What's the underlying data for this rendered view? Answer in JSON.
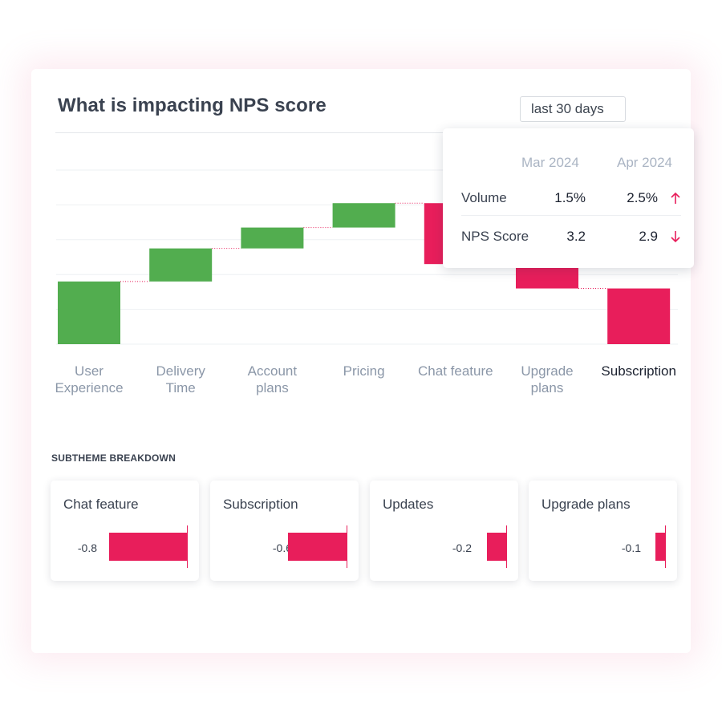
{
  "header": {
    "title": "What is impacting NPS score",
    "range_label": "last 30 days"
  },
  "chart_data": {
    "type": "waterfall",
    "categories": [
      "User Experience",
      "Delivery Time",
      "Account plans",
      "Pricing",
      "Chat feature",
      "Upgrade plans",
      "Subscription"
    ],
    "start": [
      0.0,
      1.8,
      2.75,
      3.35,
      4.05,
      2.3,
      1.6
    ],
    "end": [
      1.8,
      2.75,
      3.35,
      4.05,
      2.3,
      1.6,
      0.0
    ],
    "ylim": [
      0,
      5
    ],
    "grid": true,
    "active_category": "Subscription",
    "colors": {
      "positive": "#52ad4f",
      "negative": "#e81e5b",
      "grid": "#eef0f3",
      "connector": "#e81e5b"
    }
  },
  "tooltip": {
    "col1": "Mar 2024",
    "col2": "Apr 2024",
    "rows": [
      {
        "label": "Volume",
        "v1": "1.5%",
        "v2": "2.5%",
        "trend": "up"
      },
      {
        "label": "NPS Score",
        "v1": "3.2",
        "v2": "2.9",
        "trend": "down"
      }
    ]
  },
  "breakdown": {
    "title": "SUBTHEME BREAKDOWN",
    "items": [
      {
        "name": "Chat feature",
        "value": -0.8,
        "label": "-0.8"
      },
      {
        "name": "Subscription",
        "value": -0.6,
        "label": "-0.6"
      },
      {
        "name": "Updates",
        "value": -0.2,
        "label": "-0.2"
      },
      {
        "name": "Upgrade plans",
        "value": -0.1,
        "label": "-0.1"
      }
    ]
  }
}
